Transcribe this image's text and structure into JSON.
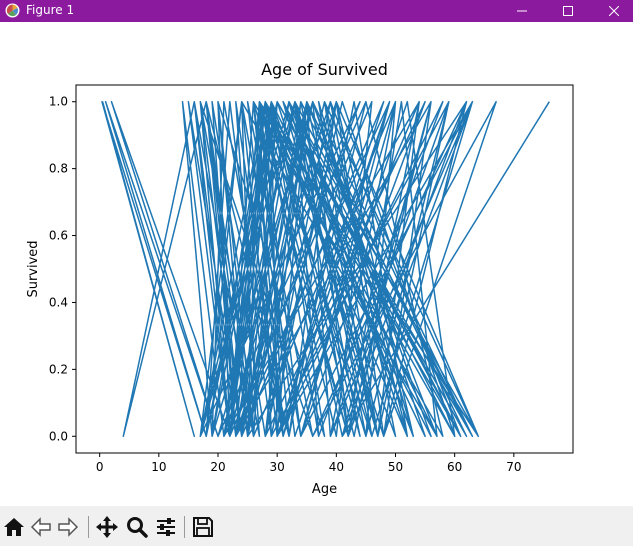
{
  "window": {
    "title": "Figure 1"
  },
  "toolbar": {
    "buttons": [
      {
        "name": "home-button",
        "icon": "home-icon"
      },
      {
        "name": "back-button",
        "icon": "arrow-left-icon"
      },
      {
        "name": "forward-button",
        "icon": "arrow-right-icon"
      },
      {
        "name": "pan-button",
        "icon": "move-icon"
      },
      {
        "name": "zoom-button",
        "icon": "magnifier-icon"
      },
      {
        "name": "configure-subplots-button",
        "icon": "sliders-icon"
      },
      {
        "name": "save-button",
        "icon": "floppy-disk-icon"
      }
    ]
  },
  "chart_data": {
    "type": "line",
    "title": "Age of Survived",
    "xlabel": "Age",
    "ylabel": "Survived",
    "xlim": [
      -4,
      80
    ],
    "ylim": [
      -0.05,
      1.05
    ],
    "xticks": [
      "0",
      "10",
      "20",
      "30",
      "40",
      "50",
      "60",
      "70"
    ],
    "yticks": [
      "0.0",
      "0.2",
      "0.4",
      "0.6",
      "0.8",
      "1.0"
    ],
    "grid": false,
    "color": "#1f77b4",
    "series": [
      {
        "x": [
          0.5,
          16,
          0.4,
          18,
          1,
          20,
          2,
          22,
          16,
          4,
          18,
          24,
          15,
          22,
          28,
          19,
          14,
          21,
          29,
          18,
          24,
          26,
          30,
          22,
          17,
          27,
          23,
          31,
          21,
          19,
          28,
          17,
          32,
          23,
          16,
          26,
          20,
          25,
          30,
          18,
          22,
          29,
          27,
          34,
          24,
          17,
          30,
          21,
          33,
          23,
          19,
          28,
          35,
          22,
          26,
          31,
          25,
          36,
          17,
          24,
          29,
          38,
          20,
          22,
          27,
          32,
          40,
          23,
          18,
          25,
          34,
          28,
          39,
          21,
          29,
          24,
          36,
          19,
          30,
          22,
          26,
          42,
          33,
          17,
          44,
          23,
          28,
          31,
          45,
          20,
          36,
          25,
          27,
          40,
          46,
          22,
          29,
          30,
          48,
          24,
          35,
          39,
          50,
          26,
          18,
          32,
          43,
          52,
          28,
          37,
          33,
          47,
          54,
          21,
          29,
          41,
          56,
          23,
          49,
          31,
          45,
          58,
          26,
          33,
          52,
          60,
          28,
          55,
          36,
          63,
          30,
          48,
          62,
          25,
          38,
          64,
          27,
          42,
          51,
          57,
          24,
          30,
          35,
          47,
          59,
          29,
          40,
          53,
          31,
          61,
          28,
          45,
          34,
          63,
          33,
          37,
          58,
          30,
          54,
          43,
          29,
          50,
          39,
          61,
          32,
          46,
          27,
          56,
          36,
          42,
          63,
          30,
          49,
          34,
          55,
          28,
          41,
          60,
          31,
          47,
          38,
          52,
          33,
          44,
          29,
          57,
          35,
          62,
          30,
          48,
          40,
          64,
          32,
          53,
          37,
          46,
          63,
          34,
          50,
          45,
          59,
          39,
          63,
          42,
          56,
          48,
          67,
          36,
          62,
          41,
          76
        ],
        "y": [
          1,
          0,
          1,
          0,
          1,
          0,
          1,
          0,
          1,
          0,
          1,
          0,
          1,
          0,
          1,
          0,
          1,
          0,
          1,
          0,
          1,
          0,
          1,
          0,
          1,
          0,
          1,
          0,
          1,
          0,
          1,
          0,
          1,
          0,
          1,
          0,
          1,
          0,
          1,
          0,
          1,
          0,
          1,
          0,
          1,
          0,
          1,
          0,
          1,
          0,
          1,
          0,
          1,
          0,
          1,
          0,
          1,
          0,
          1,
          0,
          1,
          0,
          1,
          0,
          1,
          0,
          1,
          0,
          1,
          0,
          1,
          0,
          1,
          0,
          1,
          0,
          1,
          0,
          1,
          0,
          1,
          0,
          1,
          0,
          1,
          0,
          1,
          0,
          1,
          0,
          1,
          0,
          1,
          0,
          1,
          0,
          1,
          0,
          1,
          0,
          1,
          0,
          1,
          0,
          1,
          0,
          1,
          0,
          1,
          0,
          1,
          0,
          1,
          0,
          1,
          0,
          1,
          0,
          1,
          0,
          1,
          0,
          1,
          0,
          1,
          0,
          1,
          0,
          1,
          0,
          1,
          0,
          1,
          0,
          1,
          0,
          1,
          0,
          1,
          0,
          1,
          0,
          1,
          0,
          1,
          0,
          1,
          0,
          1,
          0,
          1,
          0,
          1,
          0,
          1,
          0,
          1,
          0,
          1,
          0,
          1,
          0,
          1,
          0,
          1,
          0,
          1,
          0,
          1,
          0,
          1,
          0,
          1,
          0,
          1,
          0,
          1,
          0,
          1,
          0,
          1,
          0,
          1,
          0,
          1,
          0,
          1,
          0,
          1,
          0,
          1,
          0,
          1,
          0,
          1,
          0,
          1,
          0,
          1,
          0,
          1,
          0,
          1,
          0,
          1,
          0,
          1,
          0,
          1,
          0,
          1
        ]
      }
    ]
  }
}
